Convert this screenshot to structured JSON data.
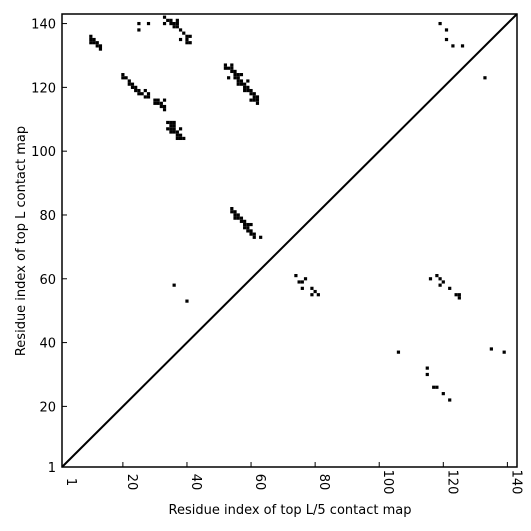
{
  "chart_data": {
    "type": "scatter",
    "xlabel": "Residue index of top L/5 contact map",
    "ylabel": "Residue index of top L contact map",
    "xlim": [
      1,
      143
    ],
    "ylim": [
      1,
      143
    ],
    "xticks": [
      1,
      20,
      40,
      60,
      80,
      100,
      120,
      140
    ],
    "yticks": [
      1,
      20,
      40,
      60,
      80,
      100,
      120,
      140
    ],
    "grid": false,
    "marker": "square",
    "diagonal": true,
    "color": "#000000",
    "series": [
      {
        "points": [
          [
            10,
            136
          ],
          [
            10,
            135
          ],
          [
            10,
            134
          ],
          [
            11,
            135
          ],
          [
            11,
            134
          ],
          [
            12,
            134
          ],
          [
            12,
            133
          ],
          [
            13,
            133
          ],
          [
            13,
            132
          ],
          [
            20,
            124
          ],
          [
            20,
            123
          ],
          [
            21,
            123
          ],
          [
            22,
            122
          ],
          [
            22,
            121
          ],
          [
            23,
            121
          ],
          [
            23,
            120
          ],
          [
            24,
            120
          ],
          [
            24,
            119
          ],
          [
            25,
            119
          ],
          [
            25,
            118
          ],
          [
            26,
            118
          ],
          [
            27,
            119
          ],
          [
            27,
            117
          ],
          [
            28,
            118
          ],
          [
            28,
            117
          ],
          [
            30,
            116
          ],
          [
            30,
            115
          ],
          [
            31,
            116
          ],
          [
            31,
            115
          ],
          [
            32,
            115
          ],
          [
            32,
            114
          ],
          [
            33,
            116
          ],
          [
            33,
            114
          ],
          [
            33,
            113
          ],
          [
            34,
            109
          ],
          [
            35,
            109
          ],
          [
            35,
            108
          ],
          [
            34,
            107
          ],
          [
            35,
            107
          ],
          [
            35,
            106
          ],
          [
            36,
            109
          ],
          [
            36,
            108
          ],
          [
            36,
            107
          ],
          [
            36,
            106
          ],
          [
            37,
            106
          ],
          [
            37,
            105
          ],
          [
            37,
            104
          ],
          [
            38,
            107
          ],
          [
            38,
            105
          ],
          [
            38,
            104
          ],
          [
            39,
            104
          ],
          [
            25,
            140
          ],
          [
            25,
            138
          ],
          [
            28,
            140
          ],
          [
            33,
            142
          ],
          [
            33,
            140
          ],
          [
            34,
            141
          ],
          [
            35,
            141
          ],
          [
            35,
            140
          ],
          [
            36,
            140
          ],
          [
            36,
            139
          ],
          [
            37,
            141
          ],
          [
            37,
            140
          ],
          [
            37,
            139
          ],
          [
            38,
            138
          ],
          [
            38,
            135
          ],
          [
            39,
            137
          ],
          [
            40,
            136
          ],
          [
            40,
            135
          ],
          [
            40,
            134
          ],
          [
            41,
            136
          ],
          [
            41,
            134
          ],
          [
            52,
            127
          ],
          [
            52,
            126
          ],
          [
            53,
            126
          ],
          [
            53,
            123
          ],
          [
            54,
            127
          ],
          [
            54,
            126
          ],
          [
            54,
            125
          ],
          [
            55,
            125
          ],
          [
            55,
            124
          ],
          [
            55,
            123
          ],
          [
            56,
            124
          ],
          [
            56,
            123
          ],
          [
            56,
            122
          ],
          [
            56,
            121
          ],
          [
            57,
            124
          ],
          [
            57,
            122
          ],
          [
            57,
            121
          ],
          [
            58,
            121
          ],
          [
            58,
            120
          ],
          [
            58,
            119
          ],
          [
            59,
            120
          ],
          [
            59,
            119
          ],
          [
            59,
            122
          ],
          [
            60,
            119
          ],
          [
            60,
            118
          ],
          [
            60,
            116
          ],
          [
            61,
            118
          ],
          [
            61,
            117
          ],
          [
            61,
            116
          ],
          [
            62,
            117
          ],
          [
            62,
            116
          ],
          [
            62,
            115
          ],
          [
            54,
            82
          ],
          [
            54,
            81
          ],
          [
            55,
            81
          ],
          [
            55,
            80
          ],
          [
            55,
            79
          ],
          [
            56,
            80
          ],
          [
            56,
            79
          ],
          [
            57,
            79
          ],
          [
            57,
            78
          ],
          [
            58,
            78
          ],
          [
            58,
            77
          ],
          [
            58,
            76
          ],
          [
            59,
            77
          ],
          [
            59,
            76
          ],
          [
            59,
            75
          ],
          [
            60,
            77
          ],
          [
            60,
            75
          ],
          [
            60,
            74
          ],
          [
            61,
            74
          ],
          [
            61,
            73
          ],
          [
            63,
            73
          ],
          [
            36,
            58
          ],
          [
            40,
            53
          ],
          [
            74,
            61
          ],
          [
            75,
            59
          ],
          [
            76,
            59
          ],
          [
            76,
            57
          ],
          [
            77,
            60
          ],
          [
            79,
            57
          ],
          [
            79,
            55
          ],
          [
            80,
            56
          ],
          [
            81,
            55
          ],
          [
            106,
            37
          ],
          [
            115,
            32
          ],
          [
            115,
            30
          ],
          [
            116,
            60
          ],
          [
            117,
            26
          ],
          [
            118,
            26
          ],
          [
            118,
            61
          ],
          [
            119,
            60
          ],
          [
            119,
            58
          ],
          [
            120,
            59
          ],
          [
            120,
            24
          ],
          [
            122,
            57
          ],
          [
            122,
            22
          ],
          [
            124,
            55
          ],
          [
            125,
            55
          ],
          [
            125,
            54
          ],
          [
            119,
            140
          ],
          [
            121,
            138
          ],
          [
            121,
            135
          ],
          [
            123,
            133
          ],
          [
            126,
            133
          ],
          [
            133,
            123
          ],
          [
            135,
            38
          ],
          [
            139,
            37
          ]
        ]
      }
    ]
  }
}
